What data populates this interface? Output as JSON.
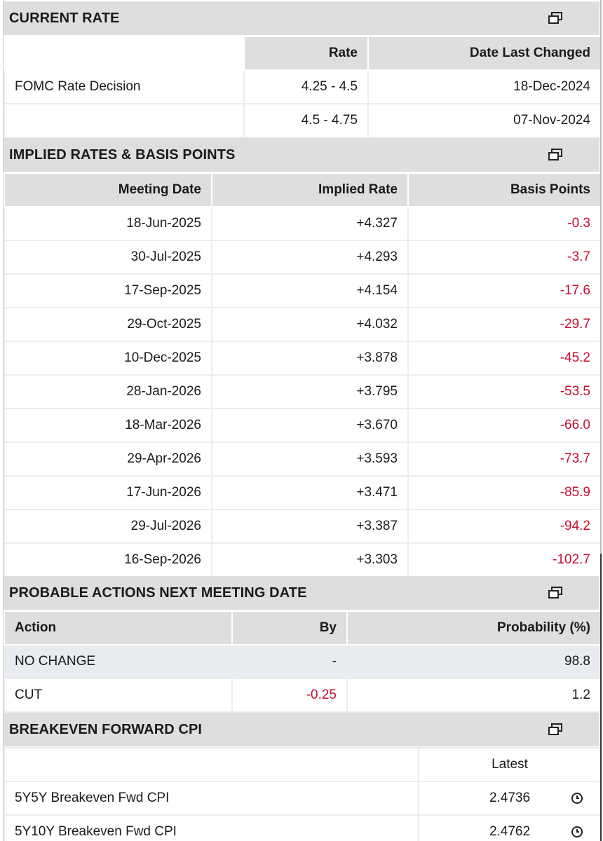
{
  "current_rate": {
    "title": "CURRENT RATE",
    "columns": [
      "",
      "Rate",
      "Date Last Changed"
    ],
    "rows": [
      {
        "label": "FOMC Rate Decision",
        "rate": "4.25 - 4.5",
        "date": "18-Dec-2024"
      },
      {
        "label": "",
        "rate": "4.5 - 4.75",
        "date": "07-Nov-2024"
      }
    ]
  },
  "implied_rates": {
    "title": "IMPLIED RATES & BASIS POINTS",
    "columns": [
      "Meeting Date",
      "Implied Rate",
      "Basis Points"
    ],
    "rows": [
      {
        "date": "18-Jun-2025",
        "rate": "+4.327",
        "bp": "-0.3"
      },
      {
        "date": "30-Jul-2025",
        "rate": "+4.293",
        "bp": "-3.7"
      },
      {
        "date": "17-Sep-2025",
        "rate": "+4.154",
        "bp": "-17.6"
      },
      {
        "date": "29-Oct-2025",
        "rate": "+4.032",
        "bp": "-29.7"
      },
      {
        "date": "10-Dec-2025",
        "rate": "+3.878",
        "bp": "-45.2"
      },
      {
        "date": "28-Jan-2026",
        "rate": "+3.795",
        "bp": "-53.5"
      },
      {
        "date": "18-Mar-2026",
        "rate": "+3.670",
        "bp": "-66.0"
      },
      {
        "date": "29-Apr-2026",
        "rate": "+3.593",
        "bp": "-73.7"
      },
      {
        "date": "17-Jun-2026",
        "rate": "+3.471",
        "bp": "-85.9"
      },
      {
        "date": "29-Jul-2026",
        "rate": "+3.387",
        "bp": "-94.2"
      },
      {
        "date": "16-Sep-2026",
        "rate": "+3.303",
        "bp": "-102.7"
      }
    ]
  },
  "probable_actions": {
    "title": "PROBABLE ACTIONS NEXT MEETING DATE",
    "columns": [
      "Action",
      "By",
      "Probability (%)"
    ],
    "rows": [
      {
        "action": "NO CHANGE",
        "by": "-",
        "prob": "98.8"
      },
      {
        "action": "CUT",
        "by": "-0.25",
        "prob": "1.2"
      }
    ]
  },
  "breakeven": {
    "title": "BREAKEVEN FORWARD CPI",
    "columns": [
      "",
      "Latest"
    ],
    "rows": [
      {
        "label": "5Y5Y Breakeven Fwd CPI",
        "latest": "2.4736"
      },
      {
        "label": "5Y10Y Breakeven Fwd CPI",
        "latest": "2.4762"
      }
    ]
  },
  "icons": {
    "popout": "popout-window-icon",
    "clock": "clock-icon"
  },
  "colors": {
    "negative": "#c8102e",
    "header_bg": "#dedede",
    "shaded_row": "#e8ebef"
  }
}
